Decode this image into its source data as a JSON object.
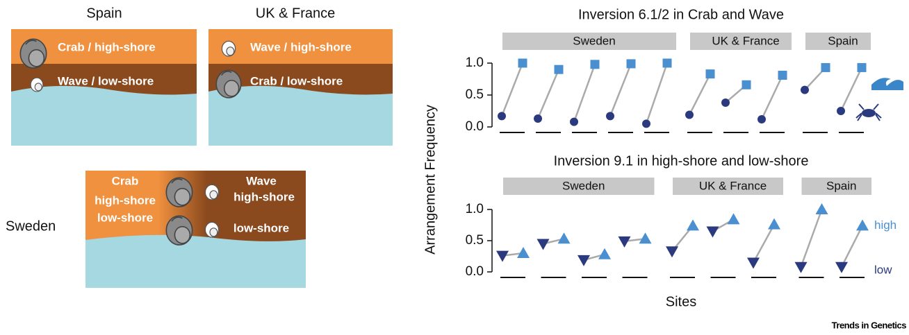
{
  "illustration": {
    "panels": [
      {
        "region": "Spain",
        "top": "Crab / high-shore",
        "bottom": "Wave / low-shore"
      },
      {
        "region": "UK & France",
        "top": "Wave / high-shore",
        "bottom": "Crab / low-shore"
      },
      {
        "region": "Sweden",
        "left": [
          "Crab",
          "high-shore",
          "low-shore"
        ],
        "right": [
          "Wave",
          "high-shore",
          "low-shore"
        ]
      }
    ]
  },
  "axes": {
    "ylabel": "Arrangement Frequency",
    "xlabel": "Sites"
  },
  "chart_data": [
    {
      "type": "paired-dot",
      "title": "Inversion 6.1/2 in Crab and Wave",
      "groups": [
        {
          "label": "Sweden",
          "sites": 5
        },
        {
          "label": "UK & France",
          "sites": 3
        },
        {
          "label": "Spain",
          "sites": 2
        }
      ],
      "ylim": [
        0,
        1
      ],
      "yticks": [
        {
          "value": 0,
          "label": "0.0"
        },
        {
          "value": 0.5,
          "label": "0.5"
        },
        {
          "value": 1,
          "label": "1.0"
        }
      ],
      "series": [
        {
          "marker": "circle",
          "color": "#2b3a7e",
          "values": [
            0.17,
            0.13,
            0.08,
            0.17,
            0.05,
            0.19,
            0.38,
            0.12,
            0.58,
            0.25
          ]
        },
        {
          "marker": "square",
          "color": "#4a8fcf",
          "values": [
            1.0,
            0.9,
            0.98,
            0.99,
            1.0,
            0.83,
            0.66,
            0.81,
            0.93,
            0.93
          ]
        }
      ]
    },
    {
      "type": "paired-dot",
      "title": "Inversion 9.1 in high-shore and low-shore",
      "groups": [
        {
          "label": "Sweden",
          "sites": 4
        },
        {
          "label": "UK & France",
          "sites": 3
        },
        {
          "label": "Spain",
          "sites": 2
        }
      ],
      "ylim": [
        0,
        1
      ],
      "yticks": [
        {
          "value": 0,
          "label": "0.0"
        },
        {
          "value": 0.5,
          "label": "0.5"
        },
        {
          "value": 1,
          "label": "1.0"
        }
      ],
      "series": [
        {
          "name": "low",
          "marker": "triangle-down",
          "color": "#2b3a7e",
          "values": [
            0.26,
            0.45,
            0.19,
            0.49,
            0.33,
            0.65,
            0.15,
            0.08,
            0.08
          ]
        },
        {
          "name": "high",
          "marker": "triangle-up",
          "color": "#4a8fcf",
          "values": [
            0.3,
            0.53,
            0.28,
            0.53,
            0.74,
            0.84,
            0.76,
            1.0,
            0.74
          ]
        }
      ]
    }
  ],
  "footer": "Trends in Genetics"
}
